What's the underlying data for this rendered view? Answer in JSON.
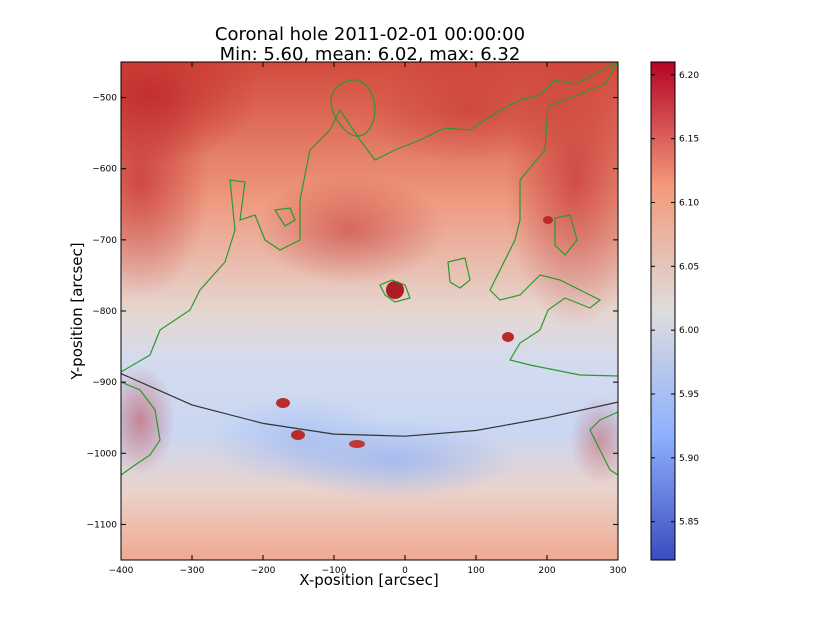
{
  "chart_data": [
    {
      "type": "heatmap",
      "title": "Coronal hole 2011-02-01 00:00:00",
      "subtitle": "Min: 5.60, mean: 6.02, max: 6.32",
      "xlabel": "X-position [arcsec]",
      "ylabel": "Y-position [arcsec]",
      "xlim": [
        -400,
        300
      ],
      "ylim": [
        -1150,
        -450
      ],
      "xticks": [
        -400,
        -300,
        -200,
        -100,
        0,
        100,
        200,
        300
      ],
      "yticks": [
        -500,
        -600,
        -700,
        -800,
        -900,
        -1000,
        -1100
      ],
      "colorbar": {
        "range": [
          5.82,
          6.21
        ],
        "ticks": [
          "5.85",
          "5.90",
          "5.95",
          "6.00",
          "6.05",
          "6.10",
          "6.15",
          "6.20"
        ],
        "colormap": "coolwarm",
        "low_color": "#3b4cc0",
        "mid_color": "#dddddd",
        "high_color": "#b40426"
      },
      "overlays": {
        "limb_arc_x": [
          -400,
          -300,
          -200,
          -100,
          0,
          100,
          200,
          300
        ],
        "limb_arc_y": [
          -888,
          -932,
          -958,
          -973,
          -976,
          -968,
          -950,
          -928
        ],
        "limb_color": "#333333",
        "contour_color": "#2a9a2a"
      }
    }
  ]
}
